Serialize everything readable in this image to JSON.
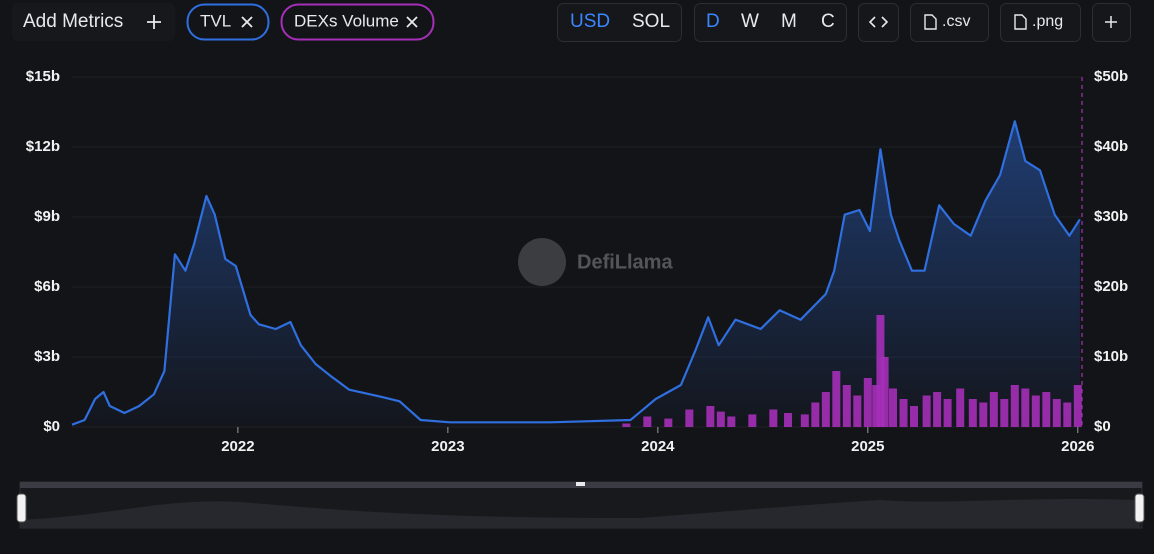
{
  "toolbar": {
    "add_metrics": "Add Metrics",
    "currency": [
      "USD",
      "SOL"
    ],
    "periods": [
      "D",
      "W",
      "M",
      "C"
    ],
    "exports": [
      ".csv",
      ".png"
    ]
  },
  "watermark": "DefiLlama",
  "chart_data": {
    "type": "combo",
    "xlim": [
      2021.21,
      2026.02
    ],
    "xticks": [
      2022,
      2023,
      2024,
      2025,
      2026
    ],
    "ylim": [
      0,
      15
    ],
    "yticks": [
      {
        "value": 0,
        "label": "$0"
      },
      {
        "value": 3,
        "label": "$3b"
      },
      {
        "value": 6,
        "label": "$6b"
      },
      {
        "value": 9,
        "label": "$9b"
      },
      {
        "value": 12,
        "label": "$12b"
      },
      {
        "value": 15,
        "label": "$15b"
      }
    ],
    "y2lim": [
      0,
      50
    ],
    "y2ticks": [
      {
        "value": 0,
        "label": "$0"
      },
      {
        "value": 10,
        "label": "$10b"
      },
      {
        "value": 20,
        "label": "$20b"
      },
      {
        "value": 30,
        "label": "$30b"
      },
      {
        "value": 40,
        "label": "$40b"
      },
      {
        "value": 50,
        "label": "$50b"
      }
    ],
    "grid": true,
    "series": [
      {
        "name": "TVL",
        "type": "line",
        "color": "#2f6fe0",
        "x": [
          2021.21,
          2021.27,
          2021.32,
          2021.36,
          2021.39,
          2021.46,
          2021.53,
          2021.6,
          2021.65,
          2021.7,
          2021.75,
          2021.79,
          2021.85,
          2021.89,
          2021.94,
          2021.99,
          2022.06,
          2022.1,
          2022.18,
          2022.25,
          2022.3,
          2022.37,
          2022.44,
          2022.53,
          2022.68,
          2022.77,
          2022.82,
          2022.87,
          2023.01,
          2023.49,
          2023.87,
          2023.99,
          2024.11,
          2024.18,
          2024.24,
          2024.29,
          2024.37,
          2024.49,
          2024.58,
          2024.68,
          2024.8,
          2024.84,
          2024.89,
          2024.96,
          2025.01,
          2025.06,
          2025.11,
          2025.15,
          2025.21,
          2025.27,
          2025.34,
          2025.41,
          2025.49,
          2025.56,
          2025.63,
          2025.7,
          2025.75,
          2025.82,
          2025.89,
          2025.96,
          2026.01
        ],
        "values": [
          0.1,
          0.3,
          1.2,
          1.5,
          0.9,
          0.6,
          0.9,
          1.4,
          2.4,
          7.4,
          6.7,
          7.8,
          9.9,
          9.1,
          7.2,
          6.9,
          4.8,
          4.4,
          4.2,
          4.5,
          3.5,
          2.7,
          2.2,
          1.6,
          1.3,
          1.1,
          0.7,
          0.3,
          0.2,
          0.2,
          0.3,
          1.2,
          1.8,
          3.3,
          4.7,
          3.5,
          4.6,
          4.2,
          5.0,
          4.6,
          5.7,
          6.7,
          9.1,
          9.3,
          8.4,
          11.9,
          9.1,
          8.0,
          6.7,
          6.7,
          9.5,
          8.7,
          8.2,
          9.7,
          10.8,
          13.1,
          11.4,
          11.0,
          9.1,
          8.2,
          8.9
        ]
      },
      {
        "name": "DEXs Volume",
        "type": "bar",
        "axis": "y2",
        "color": "#a52fb8",
        "x": [
          2023.85,
          2023.95,
          2024.05,
          2024.15,
          2024.25,
          2024.3,
          2024.35,
          2024.45,
          2024.55,
          2024.62,
          2024.7,
          2024.75,
          2024.8,
          2024.85,
          2024.9,
          2024.95,
          2025.0,
          2025.04,
          2025.06,
          2025.08,
          2025.12,
          2025.17,
          2025.22,
          2025.28,
          2025.33,
          2025.38,
          2025.44,
          2025.5,
          2025.55,
          2025.6,
          2025.65,
          2025.7,
          2025.75,
          2025.8,
          2025.85,
          2025.9,
          2025.95,
          2026.0
        ],
        "values": [
          0.5,
          1.5,
          1.2,
          2.5,
          3.0,
          2.2,
          1.5,
          1.8,
          2.5,
          2.0,
          1.8,
          3.5,
          5.0,
          8.0,
          6.0,
          4.5,
          7.0,
          6.0,
          16.0,
          10.0,
          5.5,
          4.0,
          3.0,
          4.5,
          5.0,
          4.0,
          5.5,
          4.0,
          3.5,
          5.0,
          4.0,
          6.0,
          5.5,
          4.5,
          5.0,
          4.0,
          3.5,
          6.0
        ]
      }
    ]
  }
}
